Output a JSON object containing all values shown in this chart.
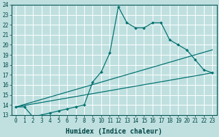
{
  "xlabel": "Humidex (Indice chaleur)",
  "bg_color": "#c0e0e0",
  "grid_color": "#ffffff",
  "line_color": "#007070",
  "xlim": [
    -0.5,
    23.5
  ],
  "ylim": [
    13,
    24
  ],
  "curve1_x": [
    0,
    1,
    2,
    3,
    4,
    5,
    6,
    7,
    8,
    9,
    10,
    11,
    12,
    13,
    14,
    15,
    16,
    17,
    18,
    19,
    20,
    21,
    22,
    23
  ],
  "curve1_y": [
    13.8,
    13.8,
    12.8,
    13.0,
    13.2,
    13.4,
    13.6,
    13.8,
    14.0,
    16.3,
    17.3,
    19.2,
    23.8,
    22.2,
    21.7,
    21.7,
    22.2,
    22.2,
    20.5,
    20.0,
    19.5,
    18.5,
    17.5,
    17.2
  ],
  "curve2_x": [
    0,
    23
  ],
  "curve2_y": [
    13.8,
    17.2
  ],
  "curve3_x": [
    0,
    23
  ],
  "curve3_y": [
    13.8,
    19.5
  ],
  "xticks": [
    0,
    1,
    2,
    3,
    4,
    5,
    6,
    7,
    8,
    9,
    10,
    11,
    12,
    13,
    14,
    15,
    16,
    17,
    18,
    19,
    20,
    21,
    22,
    23
  ],
  "yticks": [
    13,
    14,
    15,
    16,
    17,
    18,
    19,
    20,
    21,
    22,
    23,
    24
  ],
  "tick_fontsize": 5.5,
  "xlabel_fontsize": 7.0
}
